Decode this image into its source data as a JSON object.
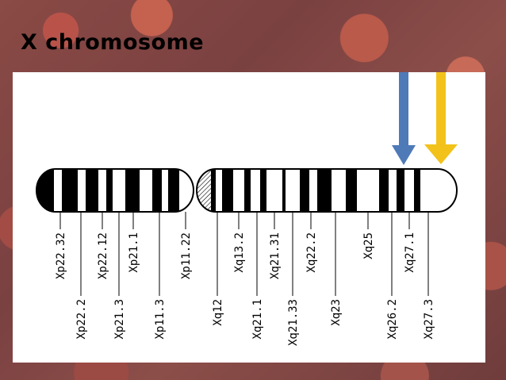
{
  "slide": {
    "title": "X chromosome"
  },
  "bands_short": [
    {
      "label": "Xp22.32",
      "tier": "upper"
    },
    {
      "label": "Xp22.2",
      "tier": "lower"
    },
    {
      "label": "Xp22.12",
      "tier": "upper"
    },
    {
      "label": "Xp21.3",
      "tier": "lower"
    },
    {
      "label": "Xp21.1",
      "tier": "upper"
    },
    {
      "label": "Xp11.3",
      "tier": "lower"
    },
    {
      "label": "Xp11.22",
      "tier": "upper"
    }
  ],
  "bands_long": [
    {
      "label": "Xq12",
      "tier": "lower"
    },
    {
      "label": "Xq13.2",
      "tier": "upper"
    },
    {
      "label": "Xq21.1",
      "tier": "lower"
    },
    {
      "label": "Xq21.31",
      "tier": "upper"
    },
    {
      "label": "Xq21.33",
      "tier": "lower"
    },
    {
      "label": "Xq22.2",
      "tier": "upper"
    },
    {
      "label": "Xq23",
      "tier": "lower"
    },
    {
      "label": "Xq25",
      "tier": "upper"
    },
    {
      "label": "Xq26.2",
      "tier": "lower"
    },
    {
      "label": "Xq27.1",
      "tier": "upper"
    },
    {
      "label": "Xq27.3",
      "tier": "lower"
    }
  ],
  "arrows": [
    {
      "name": "blue-arrow",
      "color": "#4f7ab8",
      "points_to": "Xq27.1"
    },
    {
      "name": "yellow-arrow",
      "color": "#f2c21b",
      "points_to": "Xq27.3"
    }
  ]
}
